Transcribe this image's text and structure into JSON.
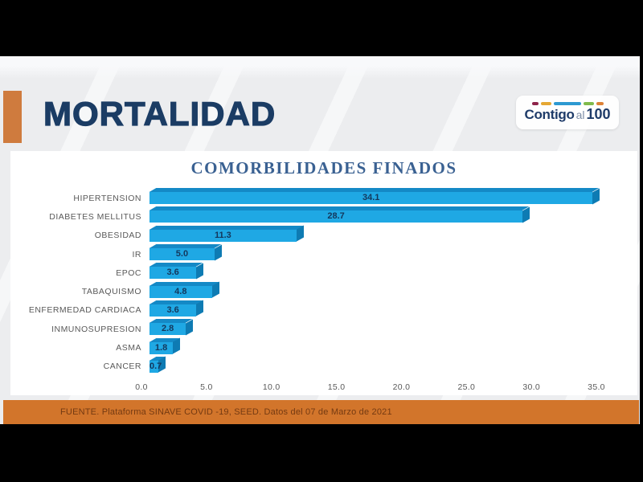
{
  "slide": {
    "header": {
      "title": "MORTALIDAD"
    },
    "logo": {
      "part1": "Contigo",
      "part2": "al",
      "part3": "100",
      "dash_colors": [
        "#8E2349",
        "#E5A733",
        "#2C99D1",
        "#7FBA4C",
        "#DD8136"
      ],
      "dash_widths": [
        8,
        13,
        34,
        13,
        9
      ]
    },
    "footer": {
      "source_text": "FUENTE. Plataforma SINAVE COVID -19, SEED. Datos del 07 de Marzo de 2021"
    }
  },
  "chart_data": {
    "type": "bar",
    "orientation": "horizontal",
    "style": "3d-horizontal-bar",
    "title": "COMORBILIDADES FINADOS",
    "categories": [
      "HIPERTENSION",
      "DIABETES MELLITUS",
      "OBESIDAD",
      "IR",
      "EPOC",
      "TABAQUISMO",
      "ENFERMEDAD CARDIACA",
      "INMUNOSUPRESION",
      "ASMA",
      "CANCER"
    ],
    "values": [
      34.1,
      28.7,
      11.3,
      5.0,
      3.6,
      4.8,
      3.6,
      2.8,
      1.8,
      0.7
    ],
    "xlabel": "",
    "ylabel": "",
    "xlim": [
      0,
      35
    ],
    "x_tick_values": [
      0,
      5,
      10,
      15,
      20,
      25,
      30,
      35
    ],
    "x_tick_labels": [
      "0.0",
      "5.0",
      "10.0",
      "15.0",
      "20.0",
      "25.0",
      "30.0",
      "35.0"
    ],
    "grid": false,
    "legend_position": "none",
    "value_label_position": "inside-center",
    "bar_color": "#1FA8E4",
    "bar_top_color": "#1489C6",
    "bar_side_color": "#0E7BB3",
    "value_label_color": "#14375C"
  },
  "colors": {
    "accent_orange": "#CF7B3E",
    "footer_orange": "#D2752B",
    "title_navy": "#1B3C64",
    "chart_title_blue": "#3A6192",
    "axis_text_gray": "#595959",
    "footer_text_brown": "#743A12",
    "slide_background": "#ECEDEF"
  }
}
